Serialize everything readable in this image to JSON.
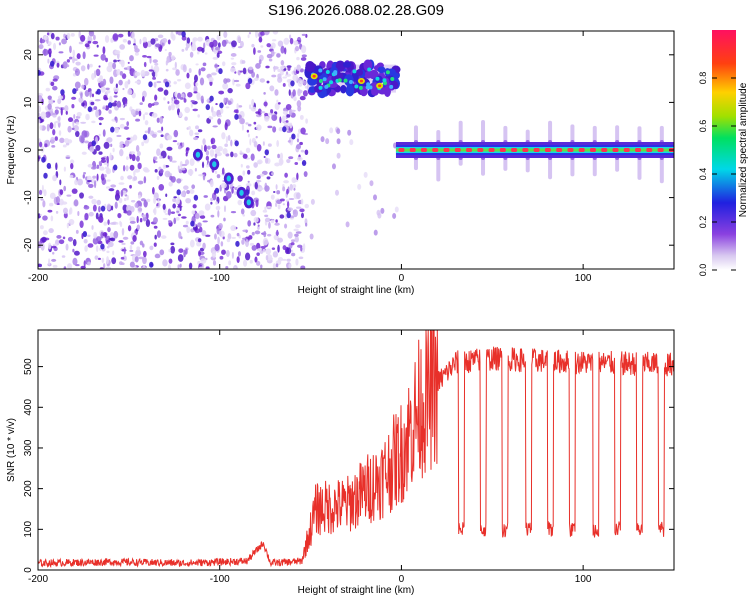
{
  "title": "S196.2026.088.02.28.G09",
  "chart_data": [
    {
      "type": "heatmap",
      "name": "spectrogram",
      "xlabel": "Height of straight line (km)",
      "ylabel": "Frequency (Hz)",
      "xlim": [
        -200,
        150
      ],
      "ylim": [
        -25,
        25
      ],
      "xticks": [
        -200,
        -100,
        0,
        100
      ],
      "yticks": [
        -20,
        -10,
        0,
        10,
        20
      ],
      "colorbar": {
        "label": "Normalized spectral amplitude",
        "range": [
          0,
          1
        ],
        "ticks": [
          0.0,
          0.2,
          0.4,
          0.6,
          0.8
        ]
      },
      "features": [
        {
          "name": "noise region",
          "x_range": [
            -200,
            -52
          ],
          "description": "scattered low-amplitude speckle"
        },
        {
          "name": "drifting trace",
          "points": [
            [
              -112,
              -1
            ],
            [
              -103,
              -3
            ],
            [
              -95,
              -6
            ],
            [
              -88,
              -9
            ],
            [
              -84,
              -11
            ]
          ]
        },
        {
          "name": "high band",
          "x_range": [
            -52,
            -3
          ],
          "freq": 15
        },
        {
          "name": "carrier line",
          "x_range": [
            -3,
            150
          ],
          "freq": 0
        }
      ]
    },
    {
      "type": "line",
      "name": "snr",
      "xlabel": "Height of straight line (km)",
      "ylabel": "SNR (10 * v/v)",
      "xlim": [
        -200,
        150
      ],
      "ylim": [
        0,
        590
      ],
      "xticks": [
        -200,
        -100,
        0,
        100
      ],
      "yticks": [
        0,
        100,
        200,
        300,
        400,
        500
      ],
      "color": "#e8302a",
      "series_envelope": [
        {
          "x": -200,
          "y": 15
        },
        {
          "x": -160,
          "y": 18
        },
        {
          "x": -120,
          "y": 15
        },
        {
          "x": -85,
          "y": 20
        },
        {
          "x": -76,
          "y": 65
        },
        {
          "x": -72,
          "y": 15
        },
        {
          "x": -55,
          "y": 20
        },
        {
          "x": -47,
          "y": 150
        },
        {
          "x": -30,
          "y": 160
        },
        {
          "x": -10,
          "y": 230
        },
        {
          "x": 0,
          "y": 290
        },
        {
          "x": 10,
          "y": 400
        },
        {
          "x": 20,
          "y": 460
        },
        {
          "x": 30,
          "y": 510
        },
        {
          "x": 50,
          "y": 520
        },
        {
          "x": 100,
          "y": 510
        },
        {
          "x": 150,
          "y": 505
        }
      ],
      "dips": [
        33,
        45,
        57,
        70,
        82,
        94,
        107,
        119,
        131,
        143
      ],
      "dip_level": 100
    }
  ]
}
